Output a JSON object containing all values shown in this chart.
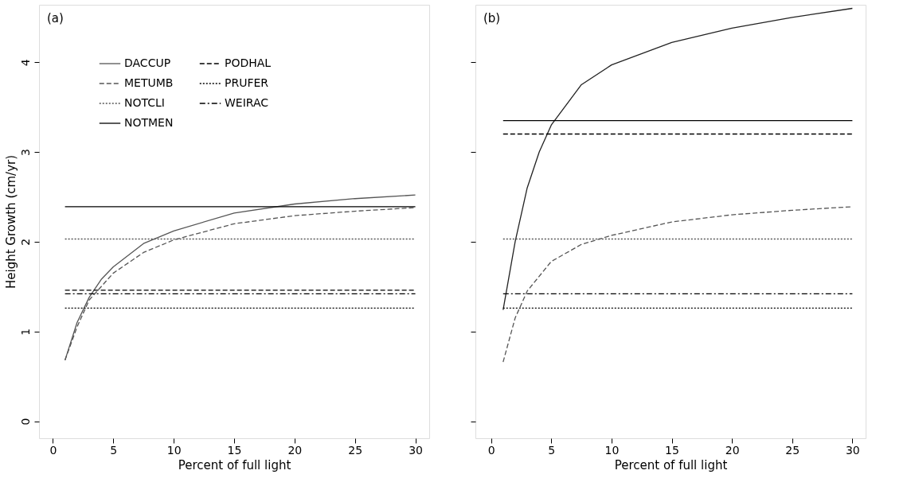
{
  "chart_data": [
    {
      "type": "line",
      "title": "(a)",
      "xlabel": "Percent of full light",
      "ylabel": "Height Growth (cm/yr)",
      "xlim": [
        -1.15,
        31.15
      ],
      "ylim": [
        -0.19,
        4.64
      ],
      "xticks": [
        0,
        5,
        10,
        15,
        20,
        25,
        30
      ],
      "yticks": [
        0,
        1,
        2,
        3,
        4
      ],
      "grid": false,
      "legend": "top left",
      "marker": "none",
      "series": [
        {
          "name": "DACCUP",
          "color": "#555555",
          "line_style": "solid",
          "x": [
            1,
            2,
            3,
            4,
            5,
            7.5,
            10,
            15,
            20,
            25,
            30
          ],
          "values": [
            0.68,
            1.1,
            1.38,
            1.58,
            1.72,
            1.98,
            2.12,
            2.32,
            2.42,
            2.48,
            2.52
          ]
        },
        {
          "name": "METUMB",
          "color": "#555555",
          "line_style": "dashed",
          "x": [
            1,
            2,
            3,
            5,
            7.5,
            10,
            15,
            20,
            25,
            30
          ],
          "values": [
            0.68,
            1.05,
            1.35,
            1.65,
            1.88,
            2.02,
            2.2,
            2.29,
            2.34,
            2.38
          ]
        },
        {
          "name": "NOTCLI",
          "color": "#555555",
          "line_style": "dotted",
          "x": [
            1,
            30
          ],
          "values": [
            2.03,
            2.03
          ]
        },
        {
          "name": "NOTMEN",
          "color": "#000000",
          "line_style": "solid",
          "x": [
            1,
            30
          ],
          "values": [
            2.39,
            2.39
          ]
        },
        {
          "name": "PODHAL",
          "color": "#000000",
          "line_style": "dashed",
          "x": [
            1,
            30
          ],
          "values": [
            1.46,
            1.46
          ]
        },
        {
          "name": "PRUFER",
          "color": "#000000",
          "line_style": "dotted",
          "x": [
            1,
            30
          ],
          "values": [
            1.26,
            1.26
          ]
        },
        {
          "name": "WEIRAC",
          "color": "#000000",
          "line_style": "dashdot",
          "x": [
            1,
            30
          ],
          "values": [
            1.42,
            1.42
          ]
        }
      ]
    },
    {
      "type": "line",
      "title": "(b)",
      "xlabel": "Percent of full light",
      "xlim": [
        -1.3,
        31.1
      ],
      "ylim": [
        -0.19,
        4.64
      ],
      "xticks": [
        0,
        5,
        10,
        15,
        20,
        25,
        30
      ],
      "yticks": [
        0,
        1,
        2,
        3,
        4
      ],
      "tick_labels": "x",
      "grid": false,
      "legend": false,
      "marker": "none",
      "series": [
        {
          "color": "#222222",
          "line_style": "solid",
          "x": [
            1,
            2,
            3,
            4,
            5,
            7.5,
            10,
            15,
            20,
            25,
            30
          ],
          "values": [
            1.24,
            2.0,
            2.6,
            3.0,
            3.3,
            3.75,
            3.97,
            4.22,
            4.38,
            4.5,
            4.6
          ]
        },
        {
          "color": "#555555",
          "line_style": "dashed",
          "x": [
            1,
            2,
            3,
            5,
            7.5,
            10,
            15,
            20,
            25,
            30
          ],
          "values": [
            0.66,
            1.15,
            1.45,
            1.78,
            1.97,
            2.07,
            2.22,
            2.3,
            2.35,
            2.39
          ]
        },
        {
          "color": "#555555",
          "line_style": "dotted",
          "x": [
            1,
            30
          ],
          "values": [
            2.03,
            2.03
          ]
        },
        {
          "color": "#000000",
          "line_style": "solid",
          "x": [
            1,
            30
          ],
          "values": [
            3.35,
            3.35
          ]
        },
        {
          "color": "#000000",
          "line_style": "dashed",
          "x": [
            1,
            30
          ],
          "values": [
            3.2,
            3.2
          ]
        },
        {
          "color": "#000000",
          "line_style": "dotted",
          "x": [
            1,
            30
          ],
          "values": [
            1.26,
            1.26
          ]
        },
        {
          "color": "#000000",
          "line_style": "dashdot",
          "x": [
            1,
            30
          ],
          "values": [
            1.42,
            1.42
          ]
        }
      ]
    }
  ]
}
